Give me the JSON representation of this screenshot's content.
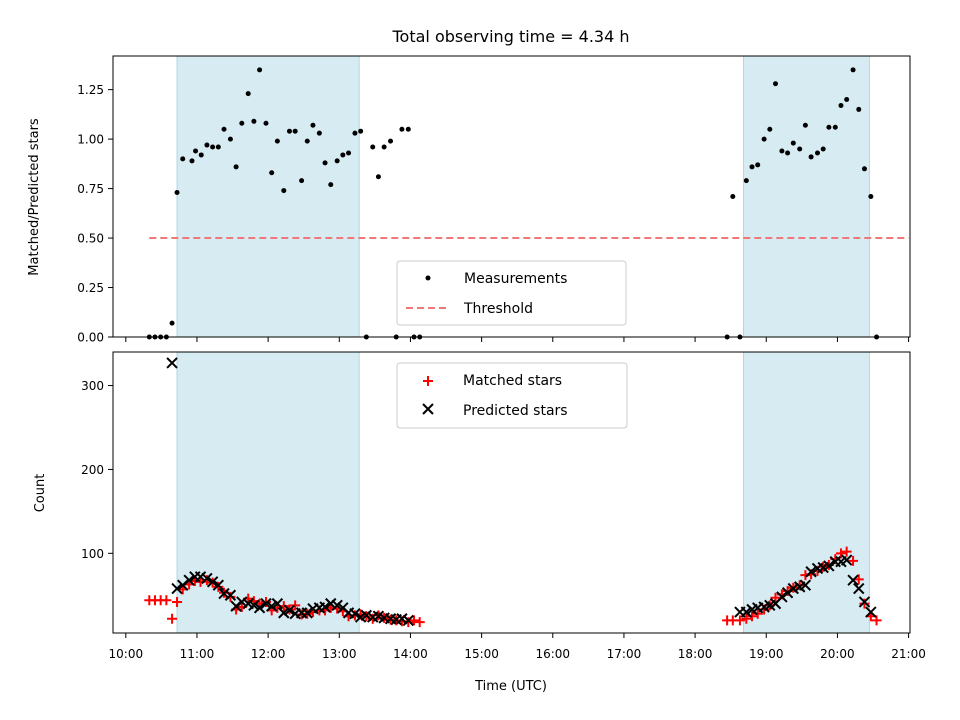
{
  "title": "Total observing time = 4.34 h",
  "chart_data": [
    {
      "type": "scatter",
      "panel": "top",
      "ylabel": "Matched/Predicted stars",
      "ylim": [
        0,
        1.42
      ],
      "yticks": [
        0.0,
        0.25,
        0.5,
        0.75,
        1.0,
        1.25
      ],
      "ytick_labels": [
        "0.00",
        "0.25",
        "0.50",
        "0.75",
        "1.00",
        "1.25"
      ],
      "threshold": {
        "value": 0.5,
        "x_range": [
          10.33,
          21.0
        ]
      },
      "shaded_intervals": [
        [
          10.72,
          13.28
        ],
        [
          18.68,
          20.45
        ]
      ],
      "legend": {
        "location": "lower-center",
        "entries": [
          "Measurements",
          "Threshold"
        ]
      },
      "colors": {
        "measurements": "#000000",
        "threshold": "#f07878",
        "shading": "#add8e6"
      },
      "series": [
        {
          "name": "Measurements",
          "x": [
            10.33,
            10.41,
            10.49,
            10.57,
            10.65,
            10.72,
            10.8,
            10.93,
            10.98,
            11.06,
            11.14,
            11.22,
            11.3,
            11.38,
            11.47,
            11.55,
            11.63,
            11.72,
            11.8,
            11.88,
            11.97,
            12.05,
            12.13,
            12.22,
            12.3,
            12.38,
            12.47,
            12.55,
            12.63,
            12.72,
            12.8,
            12.88,
            12.97,
            13.05,
            13.13,
            13.22,
            13.3,
            13.38,
            13.47,
            13.55,
            13.63,
            13.72,
            13.8,
            13.88,
            13.97,
            14.05,
            14.13,
            18.45,
            18.53,
            18.63,
            18.72,
            18.8,
            18.88,
            18.97,
            19.05,
            19.13,
            19.22,
            19.3,
            19.38,
            19.47,
            19.55,
            19.63,
            19.72,
            19.8,
            19.88,
            19.97,
            20.05,
            20.13,
            20.22,
            20.3,
            20.38,
            20.47,
            20.55
          ],
          "y": [
            0.0,
            0.0,
            0.0,
            0.0,
            0.07,
            0.73,
            0.9,
            0.89,
            0.94,
            0.92,
            0.97,
            0.96,
            0.96,
            1.05,
            1.0,
            0.86,
            1.08,
            1.23,
            1.09,
            1.35,
            1.08,
            0.83,
            0.99,
            0.74,
            1.04,
            1.04,
            0.79,
            0.99,
            1.07,
            1.03,
            0.88,
            0.77,
            0.89,
            0.92,
            0.93,
            1.03,
            1.04,
            0.0,
            0.96,
            0.81,
            0.96,
            0.99,
            0.0,
            1.05,
            1.05,
            0.0,
            0.0,
            0.0,
            0.71,
            0.0,
            0.79,
            0.86,
            0.87,
            1.0,
            1.05,
            1.28,
            0.94,
            0.93,
            0.98,
            0.95,
            1.07,
            0.91,
            0.93,
            0.95,
            1.06,
            1.06,
            1.17,
            1.2,
            1.35,
            1.15,
            0.85,
            0.71,
            0.0
          ]
        }
      ]
    },
    {
      "type": "scatter",
      "panel": "bottom",
      "xlabel": "Time (UTC)",
      "ylabel": "Count",
      "ylim": [
        5,
        340
      ],
      "yticks": [
        100,
        200,
        300
      ],
      "ytick_labels": [
        "100",
        "200",
        "300"
      ],
      "xlim": [
        9.82,
        21.02
      ],
      "xticks": [
        10,
        11,
        12,
        13,
        14,
        15,
        16,
        17,
        18,
        19,
        20,
        21
      ],
      "xtick_labels": [
        "10:00",
        "11:00",
        "12:00",
        "13:00",
        "14:00",
        "15:00",
        "16:00",
        "17:00",
        "18:00",
        "19:00",
        "20:00",
        "21:00"
      ],
      "shaded_intervals": [
        [
          10.72,
          13.28
        ],
        [
          18.68,
          20.45
        ]
      ],
      "legend": {
        "location": "upper-center",
        "entries": [
          "Matched stars",
          "Predicted stars"
        ]
      },
      "colors": {
        "matched": "#ff0000",
        "predicted": "#000000"
      },
      "series": [
        {
          "name": "Matched stars",
          "x": [
            10.33,
            10.41,
            10.49,
            10.57,
            10.65,
            10.72,
            10.8,
            10.89,
            10.97,
            11.05,
            11.14,
            11.22,
            11.3,
            11.38,
            11.47,
            11.55,
            11.63,
            11.72,
            11.8,
            11.88,
            11.97,
            12.05,
            12.13,
            12.22,
            12.3,
            12.38,
            12.47,
            12.55,
            12.63,
            12.72,
            12.8,
            12.88,
            12.97,
            13.05,
            13.13,
            13.22,
            13.3,
            13.38,
            13.47,
            13.55,
            13.63,
            13.72,
            13.8,
            13.88,
            13.97,
            14.05,
            14.13,
            18.45,
            18.53,
            18.63,
            18.72,
            18.8,
            18.88,
            18.97,
            19.05,
            19.13,
            19.22,
            19.3,
            19.38,
            19.47,
            19.55,
            19.63,
            19.72,
            19.8,
            19.88,
            19.97,
            20.05,
            20.13,
            20.22,
            20.3,
            20.38,
            20.47,
            20.55
          ],
          "y": [
            44,
            44,
            44,
            44,
            22,
            42,
            57,
            63,
            67,
            66,
            68,
            65,
            60,
            53,
            48,
            33,
            36,
            46,
            43,
            40,
            42,
            32,
            35,
            37,
            33,
            38,
            27,
            28,
            30,
            32,
            32,
            35,
            34,
            31,
            25,
            26,
            27,
            25,
            22,
            26,
            23,
            21,
            20,
            19,
            18,
            20,
            18,
            20,
            20,
            20,
            22,
            25,
            28,
            33,
            38,
            47,
            51,
            55,
            59,
            62,
            74,
            75,
            79,
            84,
            86,
            93,
            100,
            102,
            91,
            69,
            40,
            25,
            20
          ]
        },
        {
          "name": "Predicted stars",
          "x": [
            10.65,
            10.72,
            10.8,
            10.89,
            10.97,
            11.05,
            11.14,
            11.22,
            11.3,
            11.38,
            11.47,
            11.55,
            11.63,
            11.72,
            11.8,
            11.88,
            11.97,
            12.05,
            12.13,
            12.22,
            12.3,
            12.38,
            12.47,
            12.55,
            12.63,
            12.72,
            12.8,
            12.88,
            12.97,
            13.05,
            13.13,
            13.22,
            13.3,
            13.38,
            13.47,
            13.55,
            13.63,
            13.72,
            13.8,
            13.88,
            13.97,
            18.63,
            18.72,
            18.8,
            18.88,
            18.97,
            19.05,
            19.13,
            19.22,
            19.3,
            19.38,
            19.47,
            19.55,
            19.63,
            19.72,
            19.8,
            19.88,
            19.97,
            20.05,
            20.13,
            20.22,
            20.3,
            20.38,
            20.47
          ],
          "y": [
            327,
            58,
            62,
            68,
            72,
            72,
            70,
            66,
            62,
            52,
            50,
            37,
            42,
            40,
            38,
            35,
            40,
            37,
            40,
            29,
            32,
            28,
            29,
            29,
            34,
            35,
            36,
            40,
            38,
            35,
            29,
            28,
            24,
            26,
            24,
            25,
            23,
            22,
            21,
            22,
            20,
            30,
            30,
            33,
            35,
            36,
            38,
            40,
            48,
            53,
            58,
            60,
            62,
            78,
            82,
            83,
            85,
            90,
            90,
            92,
            68,
            58,
            42,
            30
          ]
        }
      ]
    }
  ]
}
